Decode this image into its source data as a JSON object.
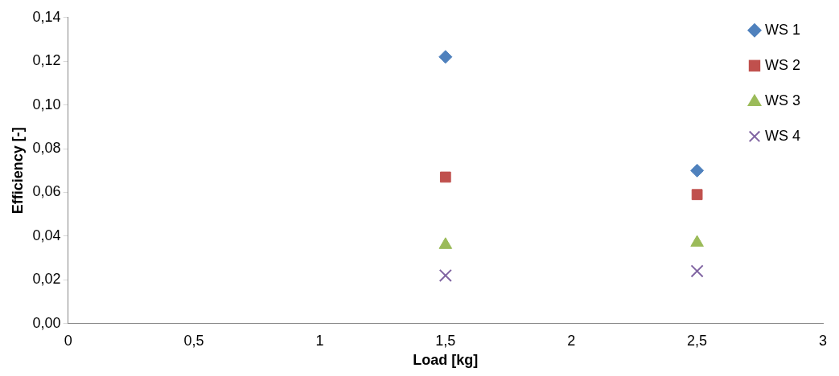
{
  "chart_data": {
    "type": "scatter",
    "xlabel": "Load [kg]",
    "ylabel": "Efficiency [-]",
    "xlim": [
      0,
      3
    ],
    "xticks": [
      0,
      {
        "value": 0.5,
        "label": "0,5"
      },
      1,
      {
        "value": 1.5,
        "label": "1,5"
      },
      2,
      {
        "value": 2.5,
        "label": "2,5"
      },
      3
    ],
    "ylim": [
      0,
      0.14
    ],
    "yticks": [
      {
        "value": 0,
        "label": "0,00"
      },
      {
        "value": 0.02,
        "label": "0,02"
      },
      {
        "value": 0.04,
        "label": "0,04"
      },
      {
        "value": 0.06,
        "label": "0,06"
      },
      {
        "value": 0.08,
        "label": "0,08"
      },
      {
        "value": 0.1,
        "label": "0,10"
      },
      {
        "value": 0.12,
        "label": "0,12"
      },
      {
        "value": 0.14,
        "label": "0,14"
      }
    ],
    "x": [
      1.5,
      2.5
    ],
    "series": [
      {
        "name": "WS 1",
        "color": "#4f81bd",
        "marker": "diamond",
        "values": [
          0.122,
          0.07
        ]
      },
      {
        "name": "WS 2",
        "color": "#c0504d",
        "marker": "square",
        "values": [
          0.067,
          0.059
        ]
      },
      {
        "name": "WS 3",
        "color": "#9bbb59",
        "marker": "triangle",
        "values": [
          0.036,
          0.037
        ]
      },
      {
        "name": "WS 4",
        "color": "#8064a2",
        "marker": "cross",
        "values": [
          0.022,
          0.024
        ]
      }
    ],
    "grid": false,
    "legend": "top right"
  }
}
